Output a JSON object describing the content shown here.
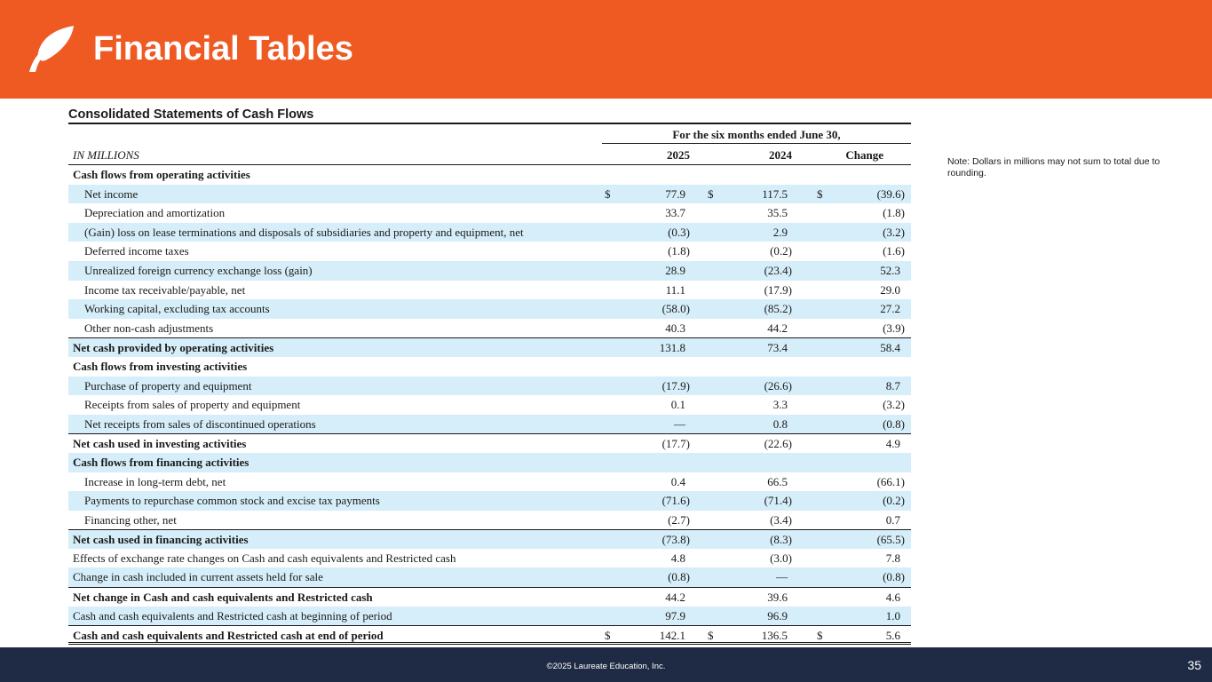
{
  "title": "Financial Tables",
  "section_title": "Consolidated Statements of Cash Flows",
  "period_header": "For the six months ended June 30,",
  "column_label": "IN MILLIONS",
  "columns": [
    "2025",
    "2024",
    "Change"
  ],
  "rows": [
    {
      "label": "Cash flows from operating activities",
      "values": [
        "",
        "",
        ""
      ]
    },
    {
      "label": "Net income",
      "values": [
        "77.9",
        "117.5",
        "(39.6)"
      ],
      "currency": "$"
    },
    {
      "label": "Depreciation and amortization",
      "values": [
        "33.7",
        "35.5",
        "(1.8)"
      ]
    },
    {
      "label": "(Gain) loss on lease terminations and disposals of subsidiaries and property and equipment, net",
      "values": [
        "(0.3)",
        "2.9",
        "(3.2)"
      ]
    },
    {
      "label": "Deferred income taxes",
      "values": [
        "(1.8)",
        "(0.2)",
        "(1.6)"
      ]
    },
    {
      "label": "Unrealized foreign currency exchange loss (gain)",
      "values": [
        "28.9",
        "(23.4)",
        "52.3"
      ]
    },
    {
      "label": "Income tax receivable/payable, net",
      "values": [
        "11.1",
        "(17.9)",
        "29.0"
      ]
    },
    {
      "label": "Working capital, excluding tax accounts",
      "values": [
        "(58.0)",
        "(85.2)",
        "27.2"
      ]
    },
    {
      "label": "Other non-cash adjustments",
      "values": [
        "40.3",
        "44.2",
        "(3.9)"
      ]
    },
    {
      "label": "Net cash provided by operating activities",
      "values": [
        "131.8",
        "73.4",
        "58.4"
      ]
    },
    {
      "label": "Cash flows from investing activities",
      "values": [
        "",
        "",
        ""
      ]
    },
    {
      "label": "Purchase of property and equipment",
      "values": [
        "(17.9)",
        "(26.6)",
        "8.7"
      ]
    },
    {
      "label": "Receipts from sales of property and equipment",
      "values": [
        "0.1",
        "3.3",
        "(3.2)"
      ]
    },
    {
      "label": "Net receipts from sales of discontinued operations",
      "values": [
        "—",
        "0.8",
        "(0.8)"
      ]
    },
    {
      "label": "Net cash used in investing activities",
      "values": [
        "(17.7)",
        "(22.6)",
        "4.9"
      ]
    },
    {
      "label": "Cash flows from financing activities",
      "values": [
        "",
        "",
        ""
      ]
    },
    {
      "label": "Increase in long-term debt, net",
      "values": [
        "0.4",
        "66.5",
        "(66.1)"
      ]
    },
    {
      "label": "Payments to repurchase common stock and excise tax payments",
      "values": [
        "(71.6)",
        "(71.4)",
        "(0.2)"
      ]
    },
    {
      "label": "Financing other, net",
      "values": [
        "(2.7)",
        "(3.4)",
        "0.7"
      ]
    },
    {
      "label": "Net cash used in financing activities",
      "values": [
        "(73.8)",
        "(8.3)",
        "(65.5)"
      ]
    },
    {
      "label": "Effects of exchange rate changes on Cash and cash equivalents and Restricted cash",
      "values": [
        "4.8",
        "(3.0)",
        "7.8"
      ]
    },
    {
      "label": "Change in cash included in current assets held for sale",
      "values": [
        "(0.8)",
        "—",
        "(0.8)"
      ]
    },
    {
      "label": "Net change in Cash and cash equivalents and Restricted cash",
      "values": [
        "44.2",
        "39.6",
        "4.6"
      ]
    },
    {
      "label": "Cash and cash equivalents and Restricted cash at beginning of period",
      "values": [
        "97.9",
        "96.9",
        "1.0"
      ]
    },
    {
      "label": "Cash and cash equivalents and Restricted cash at end of period",
      "values": [
        "142.1",
        "136.5",
        "5.6"
      ],
      "currency": "$"
    }
  ],
  "note": "Note:  Dollars in millions may not sum to total due to rounding.",
  "copyright": "©2025 Laureate Education, Inc.",
  "page_number": "35",
  "colors": {
    "header": "#ef5a23",
    "footer": "#1f2a44",
    "shade": "#d6eef9"
  }
}
